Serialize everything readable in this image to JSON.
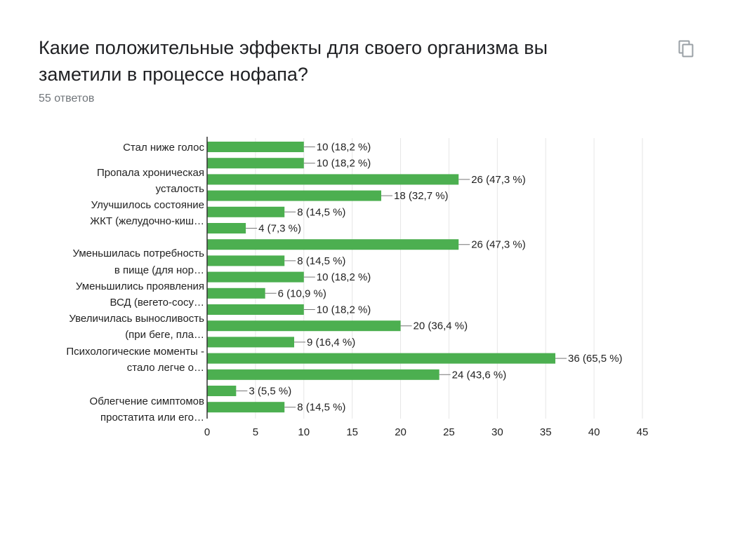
{
  "question": {
    "title": "Какие положительные эффекты для своего организма вы заметили в процессе нофапа?",
    "responses": "55 ответов"
  },
  "toolbar": {
    "copy_icon": "copy-icon"
  },
  "colors": {
    "bar": "#4caf50",
    "grid": "#e6e6e6",
    "axis": "#333333",
    "text": "#222222"
  },
  "chart_data": {
    "type": "bar",
    "orientation": "horizontal",
    "category_labels": [
      {
        "lines": [
          "Стал ниже голос"
        ]
      },
      {
        "lines": [
          "Пропала хроническая",
          "усталость"
        ]
      },
      {
        "lines": [
          "Улучшилось состояние",
          "ЖКТ (желудочно-киш…"
        ]
      },
      {
        "lines": [
          "Уменьшилась потребность",
          "в пище (для нор…"
        ]
      },
      {
        "lines": [
          "Уменьшились проявления",
          "ВСД (вегето-сосу…"
        ]
      },
      {
        "lines": [
          "Увеличилась выносливость",
          "(при беге, пла…"
        ]
      },
      {
        "lines": [
          "Психологические моменты -",
          "стало легче о…"
        ]
      },
      {
        "lines": [
          "Облегчение симптомов",
          "простатита или его…"
        ]
      }
    ],
    "values": [
      10,
      10,
      26,
      18,
      8,
      4,
      26,
      8,
      10,
      6,
      10,
      20,
      9,
      36,
      24,
      3,
      8
    ],
    "value_labels": [
      "10 (18,2 %)",
      "10 (18,2 %)",
      "26 (47,3 %)",
      "18 (32,7 %)",
      "8 (14,5 %)",
      "4 (7,3 %)",
      "26 (47,3 %)",
      "8 (14,5 %)",
      "10 (18,2 %)",
      "6 (10,9 %)",
      "10 (18,2 %)",
      "20 (36,4 %)",
      "9 (16,4 %)",
      "36 (65,5 %)",
      "24 (43,6 %)",
      "3 (5,5 %)",
      "8 (14,5 %)"
    ],
    "xlim": [
      0,
      45
    ],
    "xticks": [
      "0",
      "5",
      "10",
      "15",
      "20",
      "25",
      "30",
      "35",
      "40",
      "45"
    ],
    "grid": true
  }
}
